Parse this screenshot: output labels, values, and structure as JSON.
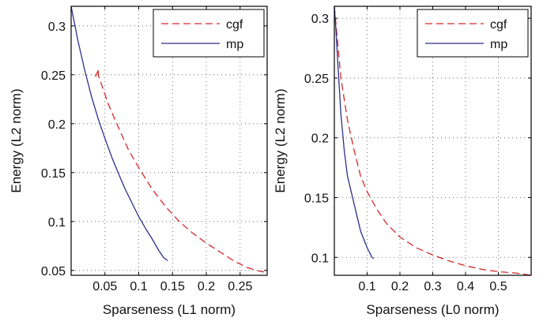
{
  "chart_data": [
    {
      "type": "line",
      "xlabel": "Sparseness (L1 norm)",
      "ylabel": "Energy (L2 norm)",
      "xlim": [
        0,
        0.29
      ],
      "ylim": [
        0.045,
        0.32
      ],
      "xticks": [
        {
          "value": 0.05,
          "label": "0.05"
        },
        {
          "value": 0.1,
          "label": "0.1"
        },
        {
          "value": 0.15,
          "label": "0.15"
        },
        {
          "value": 0.2,
          "label": "0.2"
        },
        {
          "value": 0.25,
          "label": "0.25"
        }
      ],
      "yticks": [
        {
          "value": 0.05,
          "label": "0.05"
        },
        {
          "value": 0.1,
          "label": "0.1"
        },
        {
          "value": 0.15,
          "label": "0.15"
        },
        {
          "value": 0.2,
          "label": "0.2"
        },
        {
          "value": 0.25,
          "label": "0.25"
        },
        {
          "value": 0.3,
          "label": "0.3"
        }
      ],
      "grid": true,
      "legend": "top-right",
      "series": [
        {
          "name": "cgf",
          "color": "#d62828",
          "style": "dashed",
          "points": [
            [
              0.036,
              0.248
            ],
            [
              0.041,
              0.256
            ],
            [
              0.04,
              0.25
            ],
            [
              0.055,
              0.22
            ],
            [
              0.07,
              0.196
            ],
            [
              0.085,
              0.173
            ],
            [
              0.1,
              0.155
            ],
            [
              0.12,
              0.133
            ],
            [
              0.14,
              0.115
            ],
            [
              0.16,
              0.1
            ],
            [
              0.18,
              0.088
            ],
            [
              0.2,
              0.078
            ],
            [
              0.22,
              0.069
            ],
            [
              0.24,
              0.06
            ],
            [
              0.26,
              0.053
            ],
            [
              0.28,
              0.049
            ],
            [
              0.29,
              0.048
            ]
          ]
        },
        {
          "name": "mp",
          "color": "#2e2f8c",
          "style": "solid",
          "points": [
            [
              0.0,
              0.32
            ],
            [
              0.01,
              0.285
            ],
            [
              0.02,
              0.255
            ],
            [
              0.03,
              0.228
            ],
            [
              0.04,
              0.205
            ],
            [
              0.05,
              0.185
            ],
            [
              0.06,
              0.166
            ],
            [
              0.07,
              0.149
            ],
            [
              0.08,
              0.133
            ],
            [
              0.09,
              0.119
            ],
            [
              0.1,
              0.105
            ],
            [
              0.11,
              0.093
            ],
            [
              0.12,
              0.082
            ],
            [
              0.13,
              0.07
            ],
            [
              0.137,
              0.063
            ],
            [
              0.143,
              0.06
            ]
          ]
        }
      ]
    },
    {
      "type": "line",
      "xlabel": "Sparseness (L0 norm)",
      "ylabel": "Energy (L2 norm)",
      "xlim": [
        0,
        0.6
      ],
      "ylim": [
        0.085,
        0.31
      ],
      "xticks": [
        {
          "value": 0.1,
          "label": "0.1"
        },
        {
          "value": 0.2,
          "label": "0.2"
        },
        {
          "value": 0.3,
          "label": "0.3"
        },
        {
          "value": 0.4,
          "label": "0.4"
        },
        {
          "value": 0.5,
          "label": "0.5"
        }
      ],
      "yticks": [
        {
          "value": 0.1,
          "label": "0.1"
        },
        {
          "value": 0.15,
          "label": "0.15"
        },
        {
          "value": 0.2,
          "label": "0.2"
        },
        {
          "value": 0.25,
          "label": "0.25"
        },
        {
          "value": 0.3,
          "label": "0.3"
        }
      ],
      "grid": true,
      "legend": "top-right",
      "series": [
        {
          "name": "cgf",
          "color": "#d62828",
          "style": "dashed",
          "points": [
            [
              0.0,
              0.31
            ],
            [
              0.01,
              0.28
            ],
            [
              0.02,
              0.25
            ],
            [
              0.04,
              0.215
            ],
            [
              0.06,
              0.19
            ],
            [
              0.08,
              0.168
            ],
            [
              0.1,
              0.155
            ],
            [
              0.13,
              0.14
            ],
            [
              0.16,
              0.128
            ],
            [
              0.2,
              0.117
            ],
            [
              0.25,
              0.108
            ],
            [
              0.3,
              0.102
            ],
            [
              0.35,
              0.097
            ],
            [
              0.4,
              0.093
            ],
            [
              0.45,
              0.09
            ],
            [
              0.5,
              0.088
            ],
            [
              0.55,
              0.087
            ],
            [
              0.6,
              0.085
            ]
          ]
        },
        {
          "name": "mp",
          "color": "#2e2f8c",
          "style": "solid",
          "points": [
            [
              0.0,
              0.31
            ],
            [
              0.005,
              0.29
            ],
            [
              0.01,
              0.265
            ],
            [
              0.02,
              0.22
            ],
            [
              0.03,
              0.19
            ],
            [
              0.04,
              0.168
            ],
            [
              0.06,
              0.145
            ],
            [
              0.08,
              0.122
            ],
            [
              0.1,
              0.108
            ],
            [
              0.115,
              0.1
            ],
            [
              0.12,
              0.099
            ]
          ]
        }
      ]
    }
  ]
}
